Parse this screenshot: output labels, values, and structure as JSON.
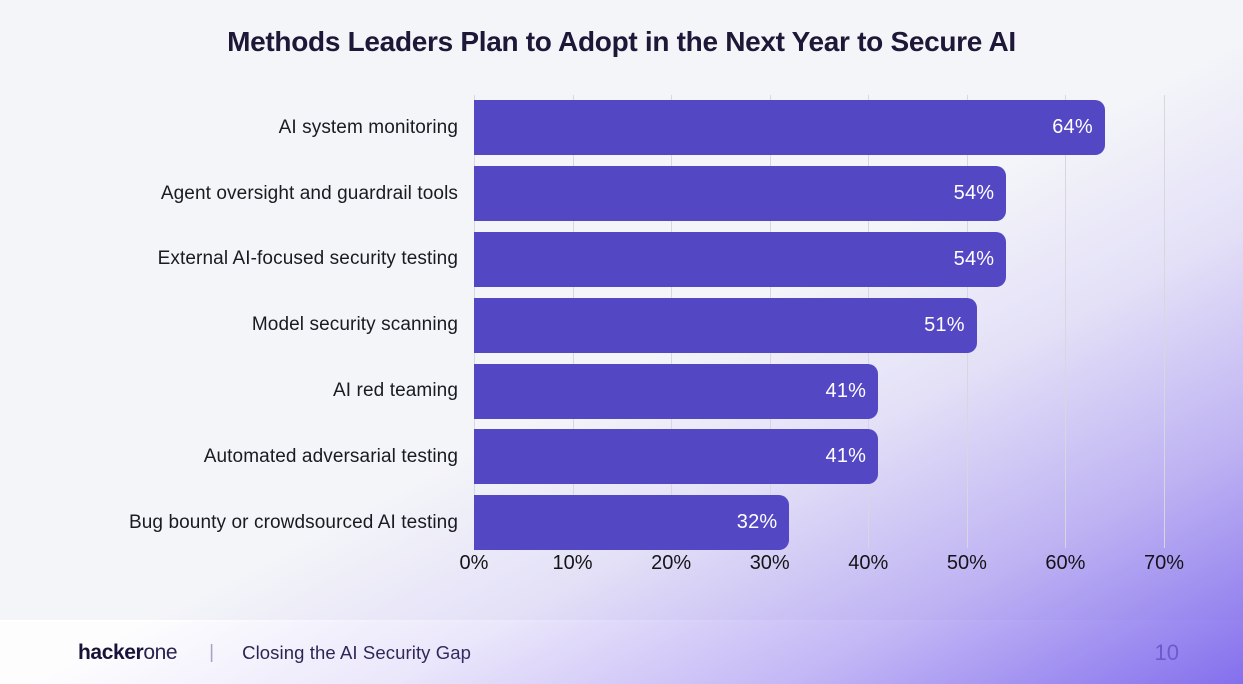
{
  "title": "Methods Leaders Plan to Adopt in the Next Year to Secure AI",
  "chart_data": {
    "type": "bar",
    "orientation": "horizontal",
    "title": "Methods Leaders Plan to Adopt in the Next Year to Secure AI",
    "categories": [
      "AI system monitoring",
      "Agent oversight and guardrail tools",
      "External AI-focused security testing",
      "Model security scanning",
      "AI red teaming",
      "Automated adversarial testing",
      "Bug bounty or crowdsourced AI testing"
    ],
    "values": [
      64,
      54,
      54,
      51,
      41,
      41,
      32
    ],
    "unit": "%",
    "xlim": [
      0,
      70
    ],
    "xticks": [
      0,
      10,
      20,
      30,
      40,
      50,
      60,
      70
    ],
    "grid": "vertical",
    "legend": "none",
    "bar_color": "#5447c4",
    "value_label_color": "#ffffff"
  },
  "footer": {
    "brand_bold": "hacker",
    "brand_light": "one",
    "divider": "|",
    "report_title": "Closing the AI Security Gap",
    "page_number": "10"
  },
  "colors": {
    "background": "#f4f5f9",
    "bar": "#5447c4",
    "title_text": "#1e1838",
    "gridline": "#d7d7de",
    "corner_glow": "#7d68ec"
  }
}
